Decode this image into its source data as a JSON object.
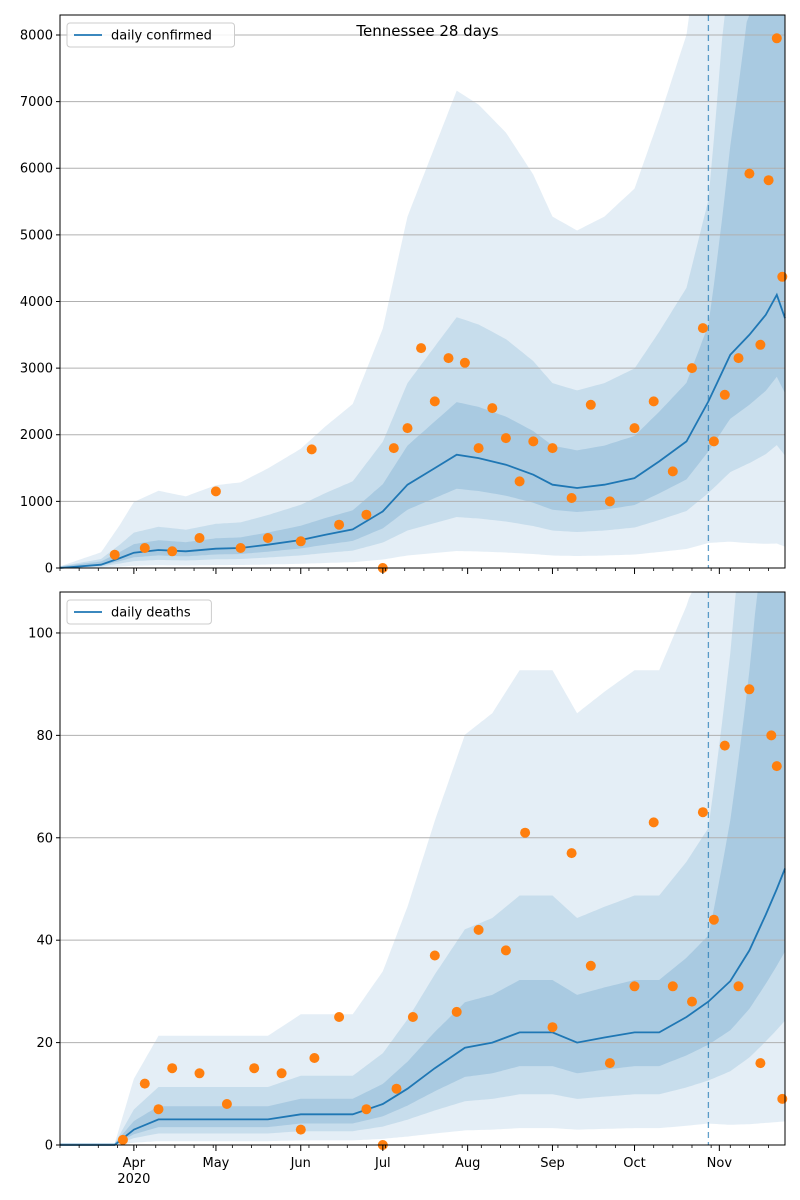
{
  "title": "Tennessee 28 days",
  "year_label": "2020",
  "colors": {
    "line": "#1f77b4",
    "points": "#ff7f0e",
    "band": "#1f77b4",
    "grid": "#b0b0b0",
    "forecast_line": "#1f77b4"
  },
  "chart_data": [
    {
      "type": "line",
      "title": "Tennessee 28 days",
      "legend": "top-left",
      "grid": "horizontal",
      "x_start": "2020-03-05",
      "x_end": "2020-11-25",
      "forecast_start": "2020-10-28",
      "xticks": [
        "Apr",
        "May",
        "Jun",
        "Jul",
        "Aug",
        "Sep",
        "Oct",
        "Nov"
      ],
      "xtick_dates": [
        "2020-04-01",
        "2020-05-01",
        "2020-06-01",
        "2020-07-01",
        "2020-08-01",
        "2020-09-01",
        "2020-10-01",
        "2020-11-01"
      ],
      "ylim": [
        0,
        8300
      ],
      "yticks": [
        0,
        1000,
        2000,
        3000,
        4000,
        5000,
        6000,
        7000,
        8000
      ],
      "series": [
        {
          "name": "daily confirmed",
          "type": "line",
          "x": [
            "2020-03-05",
            "2020-03-20",
            "2020-03-27",
            "2020-04-01",
            "2020-04-10",
            "2020-04-20",
            "2020-05-01",
            "2020-05-10",
            "2020-05-20",
            "2020-06-01",
            "2020-06-10",
            "2020-06-20",
            "2020-07-01",
            "2020-07-10",
            "2020-07-20",
            "2020-07-28",
            "2020-08-05",
            "2020-08-15",
            "2020-08-25",
            "2020-09-01",
            "2020-09-10",
            "2020-09-20",
            "2020-10-01",
            "2020-10-10",
            "2020-10-20",
            "2020-10-28",
            "2020-11-05",
            "2020-11-12",
            "2020-11-18",
            "2020-11-22",
            "2020-11-25"
          ],
          "values": [
            0,
            50,
            150,
            230,
            270,
            250,
            290,
            300,
            350,
            420,
            500,
            580,
            850,
            1250,
            1500,
            1700,
            1650,
            1550,
            1400,
            1250,
            1200,
            1250,
            1350,
            1600,
            1900,
            2500,
            3200,
            3500,
            3800,
            4100,
            3750
          ]
        },
        {
          "name": "",
          "type": "scatter",
          "x": [
            "2020-03-25",
            "2020-04-05",
            "2020-04-15",
            "2020-04-25",
            "2020-05-01",
            "2020-05-10",
            "2020-05-20",
            "2020-06-01",
            "2020-06-05",
            "2020-06-15",
            "2020-06-25",
            "2020-07-01",
            "2020-07-05",
            "2020-07-10",
            "2020-07-15",
            "2020-07-20",
            "2020-07-25",
            "2020-07-31",
            "2020-08-05",
            "2020-08-10",
            "2020-08-15",
            "2020-08-20",
            "2020-08-25",
            "2020-09-01",
            "2020-09-08",
            "2020-09-15",
            "2020-09-22",
            "2020-10-01",
            "2020-10-08",
            "2020-10-15",
            "2020-10-22",
            "2020-10-26",
            "2020-10-30",
            "2020-11-03",
            "2020-11-08",
            "2020-11-12",
            "2020-11-16",
            "2020-11-19",
            "2020-11-22",
            "2020-11-24"
          ],
          "values": [
            200,
            300,
            250,
            450,
            1150,
            300,
            450,
            400,
            1780,
            650,
            800,
            0,
            1800,
            2100,
            3300,
            2500,
            3150,
            3080,
            1800,
            2400,
            1950,
            1300,
            1900,
            1800,
            1050,
            2450,
            1000,
            2100,
            2500,
            1450,
            3000,
            3600,
            1900,
            2600,
            3150,
            5920,
            3350,
            5820,
            7950,
            4370
          ]
        }
      ]
    },
    {
      "type": "line",
      "legend": "top-left",
      "grid": "horizontal",
      "x_start": "2020-03-05",
      "x_end": "2020-11-25",
      "forecast_start": "2020-10-28",
      "xticks": [
        "Apr",
        "May",
        "Jun",
        "Jul",
        "Aug",
        "Sep",
        "Oct",
        "Nov"
      ],
      "xtick_dates": [
        "2020-04-01",
        "2020-05-01",
        "2020-06-01",
        "2020-07-01",
        "2020-08-01",
        "2020-09-01",
        "2020-10-01",
        "2020-11-01"
      ],
      "ylim": [
        0,
        108
      ],
      "yticks": [
        0,
        20,
        40,
        60,
        80,
        100
      ],
      "series": [
        {
          "name": "daily deaths",
          "type": "line",
          "x": [
            "2020-03-05",
            "2020-03-25",
            "2020-04-01",
            "2020-04-10",
            "2020-04-20",
            "2020-05-01",
            "2020-05-10",
            "2020-05-20",
            "2020-06-01",
            "2020-06-10",
            "2020-06-20",
            "2020-07-01",
            "2020-07-10",
            "2020-07-20",
            "2020-07-31",
            "2020-08-10",
            "2020-08-20",
            "2020-09-01",
            "2020-09-10",
            "2020-09-20",
            "2020-10-01",
            "2020-10-10",
            "2020-10-20",
            "2020-10-28",
            "2020-11-05",
            "2020-11-12",
            "2020-11-18",
            "2020-11-22",
            "2020-11-25"
          ],
          "values": [
            0,
            0,
            3,
            5,
            5,
            5,
            5,
            5,
            6,
            6,
            6,
            8,
            11,
            15,
            19,
            20,
            22,
            22,
            20,
            21,
            22,
            22,
            25,
            28,
            32,
            38,
            45,
            50,
            54
          ]
        },
        {
          "name": "",
          "type": "scatter",
          "x": [
            "2020-03-28",
            "2020-04-05",
            "2020-04-10",
            "2020-04-15",
            "2020-04-25",
            "2020-05-05",
            "2020-05-15",
            "2020-05-25",
            "2020-06-01",
            "2020-06-06",
            "2020-06-15",
            "2020-06-25",
            "2020-07-01",
            "2020-07-06",
            "2020-07-12",
            "2020-07-20",
            "2020-07-28",
            "2020-08-05",
            "2020-08-15",
            "2020-08-22",
            "2020-09-01",
            "2020-09-08",
            "2020-09-15",
            "2020-09-22",
            "2020-10-01",
            "2020-10-08",
            "2020-10-15",
            "2020-10-22",
            "2020-10-26",
            "2020-10-30",
            "2020-11-03",
            "2020-11-08",
            "2020-11-12",
            "2020-11-16",
            "2020-11-20",
            "2020-11-22",
            "2020-11-24"
          ],
          "values": [
            1,
            12,
            7,
            15,
            14,
            8,
            15,
            14,
            3,
            17,
            25,
            7,
            0,
            11,
            25,
            37,
            26,
            42,
            38,
            61,
            23,
            57,
            35,
            16,
            31,
            63,
            31,
            28,
            65,
            44,
            78,
            31,
            89,
            16,
            80,
            74,
            9
          ]
        }
      ]
    }
  ]
}
